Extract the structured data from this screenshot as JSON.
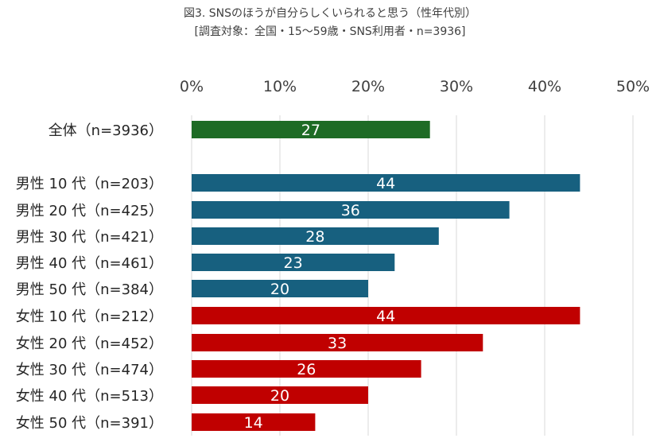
{
  "chart_data": {
    "type": "bar",
    "orientation": "horizontal",
    "title": "図3. SNSのほうが自分らしくいられると思う（性年代別）",
    "subtitle": "[調査対象：全国・15～59歳・SNS利用者・n=3936]",
    "xlim": [
      0,
      50
    ],
    "ticks": [
      "0%",
      "10%",
      "20%",
      "30%",
      "40%",
      "50%"
    ],
    "tick_values": [
      0,
      10,
      20,
      30,
      40,
      50
    ],
    "grid": true,
    "categories": [
      "全体（n=3936）",
      "男性 10 代（n=203）",
      "男性 20 代（n=425）",
      "男性 30 代（n=421）",
      "男性 40 代（n=461）",
      "男性 50 代（n=384）",
      "女性 10 代（n=212）",
      "女性 20 代（n=452）",
      "女性 30 代（n=474）",
      "女性 40 代（n=513）",
      "女性 50 代（n=391）"
    ],
    "values": [
      27,
      44,
      36,
      28,
      23,
      20,
      44,
      33,
      26,
      20,
      14
    ],
    "groups": [
      "all",
      "male",
      "male",
      "male",
      "male",
      "male",
      "female",
      "female",
      "female",
      "female",
      "female"
    ],
    "colors": {
      "all": "#1e6b25",
      "male": "#17607f",
      "female": "#c00000"
    }
  }
}
